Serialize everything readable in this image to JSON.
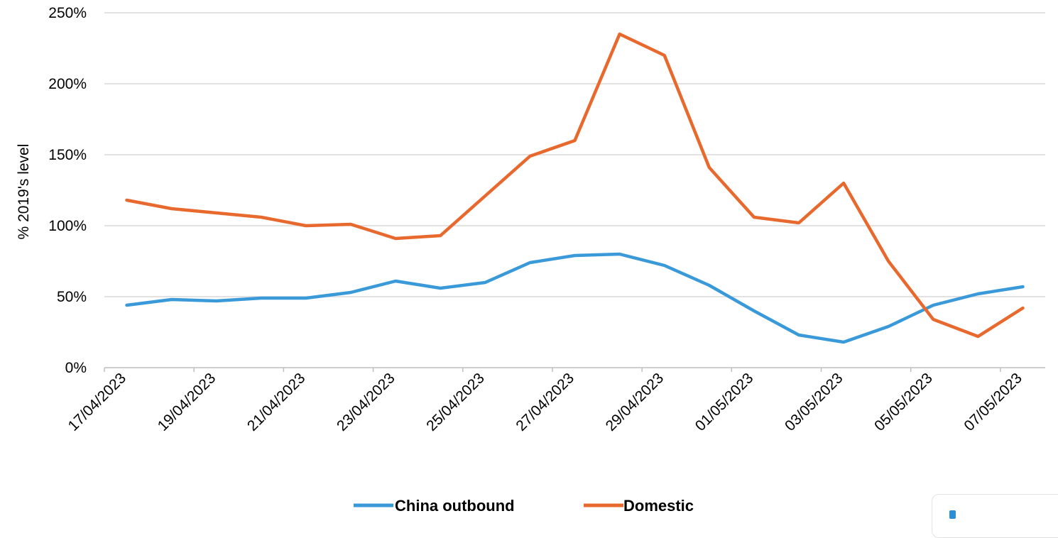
{
  "chart_data": {
    "type": "line",
    "ylabel": "% 2019's level",
    "xlabel": "",
    "ylim": [
      0,
      250
    ],
    "yticks": [
      0,
      50,
      100,
      150,
      200,
      250
    ],
    "ytick_labels": [
      "0%",
      "50%",
      "100%",
      "150%",
      "200%",
      "250%"
    ],
    "grid": true,
    "legend_position": "bottom-center",
    "x": [
      "17/04/2023",
      "18/04/2023",
      "19/04/2023",
      "20/04/2023",
      "21/04/2023",
      "22/04/2023",
      "23/04/2023",
      "24/04/2023",
      "25/04/2023",
      "26/04/2023",
      "27/04/2023",
      "28/04/2023",
      "29/04/2023",
      "30/04/2023",
      "01/05/2023",
      "02/05/2023",
      "03/05/2023",
      "04/05/2023",
      "05/05/2023",
      "06/05/2023",
      "07/05/2023"
    ],
    "xtick_labels": [
      "17/04/2023",
      "19/04/2023",
      "21/04/2023",
      "23/04/2023",
      "25/04/2023",
      "27/04/2023",
      "29/04/2023",
      "01/05/2023",
      "03/05/2023",
      "05/05/2023",
      "07/05/2023"
    ],
    "series": [
      {
        "name": "China outbound",
        "color": "#3a9ad9",
        "values": [
          44,
          48,
          47,
          49,
          49,
          53,
          61,
          56,
          60,
          74,
          79,
          80,
          72,
          58,
          40,
          23,
          18,
          29,
          44,
          52,
          57
        ]
      },
      {
        "name": "Domestic",
        "color": "#e8692e",
        "values": [
          118,
          112,
          109,
          106,
          100,
          101,
          91,
          93,
          121,
          149,
          160,
          235,
          220,
          141,
          106,
          102,
          130,
          75,
          34,
          22,
          42
        ]
      }
    ]
  }
}
